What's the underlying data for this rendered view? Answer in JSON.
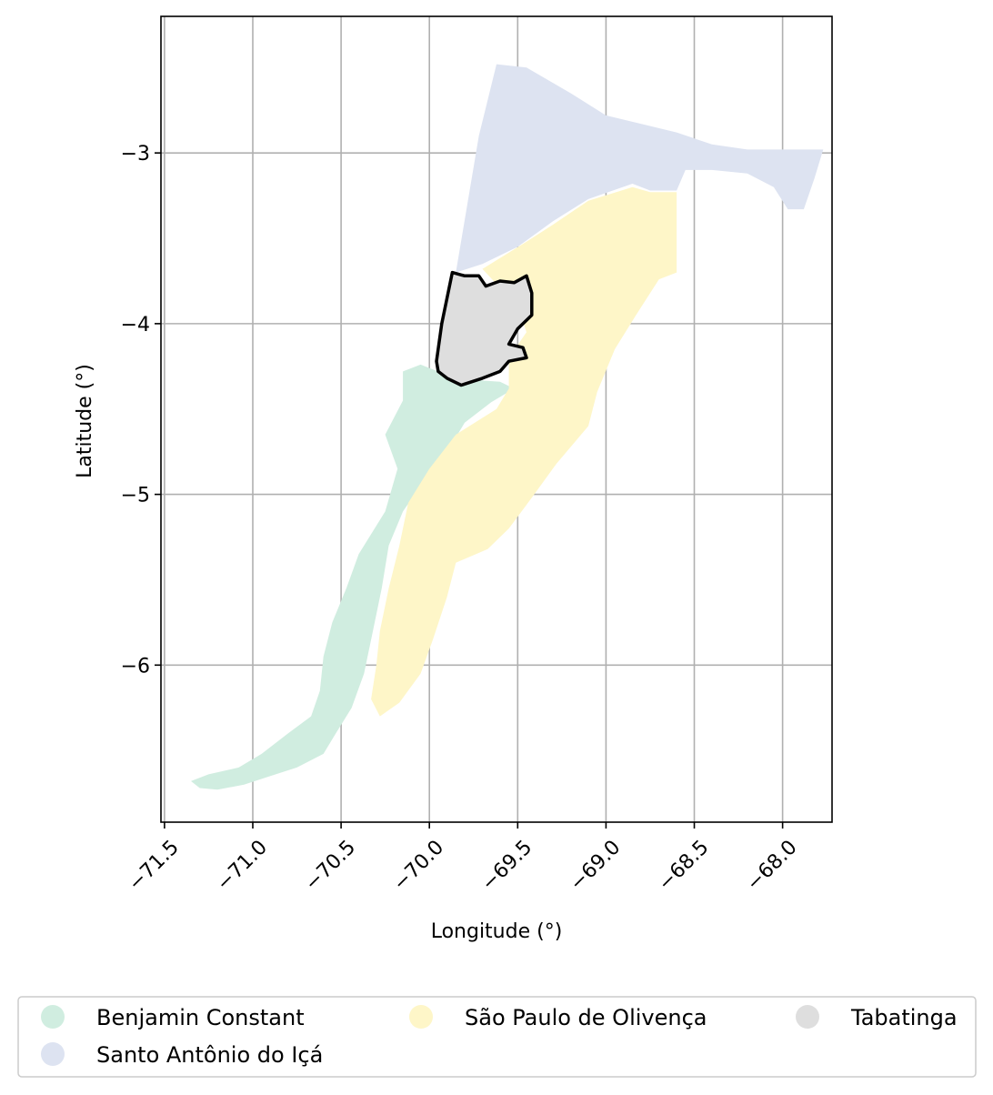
{
  "chart_data": {
    "type": "map",
    "xlabel": "Longitude (°)",
    "ylabel": "Latitude (°)",
    "xlim": [
      -71.52,
      -67.72
    ],
    "ylim": [
      -6.92,
      -2.2
    ],
    "x_ticks": [
      -71.5,
      -71.0,
      -70.5,
      -70.0,
      -69.5,
      -69.0,
      -68.5,
      -68.0
    ],
    "x_tick_labels": [
      "−71.5",
      "−71.0",
      "−70.5",
      "−70.0",
      "−69.5",
      "−69.0",
      "−68.5",
      "−68.0"
    ],
    "y_ticks": [
      -3,
      -4,
      -5,
      -6
    ],
    "y_tick_labels": [
      "−3",
      "−4",
      "−5",
      "−6"
    ],
    "grid": true,
    "legend_position": "bottom",
    "highlighted_region": "Tabatinga",
    "regions": [
      {
        "name": "Benjamin Constant",
        "color": "#d0ede0",
        "outline": false,
        "polygon": [
          [
            -70.15,
            -4.28
          ],
          [
            -70.05,
            -4.24
          ],
          [
            -69.9,
            -4.3
          ],
          [
            -69.75,
            -4.33
          ],
          [
            -69.6,
            -4.34
          ],
          [
            -69.52,
            -4.38
          ],
          [
            -69.65,
            -4.46
          ],
          [
            -69.8,
            -4.58
          ],
          [
            -69.9,
            -4.75
          ],
          [
            -70.05,
            -4.95
          ],
          [
            -70.15,
            -5.1
          ],
          [
            -70.23,
            -5.3
          ],
          [
            -70.27,
            -5.55
          ],
          [
            -70.32,
            -5.8
          ],
          [
            -70.37,
            -6.05
          ],
          [
            -70.44,
            -6.25
          ],
          [
            -70.53,
            -6.4
          ],
          [
            -70.6,
            -6.52
          ],
          [
            -70.75,
            -6.6
          ],
          [
            -70.9,
            -6.65
          ],
          [
            -71.05,
            -6.7
          ],
          [
            -71.2,
            -6.73
          ],
          [
            -71.3,
            -6.72
          ],
          [
            -71.35,
            -6.68
          ],
          [
            -71.25,
            -6.64
          ],
          [
            -71.08,
            -6.6
          ],
          [
            -70.95,
            -6.52
          ],
          [
            -70.8,
            -6.4
          ],
          [
            -70.67,
            -6.3
          ],
          [
            -70.62,
            -6.15
          ],
          [
            -70.6,
            -5.95
          ],
          [
            -70.55,
            -5.75
          ],
          [
            -70.47,
            -5.55
          ],
          [
            -70.4,
            -5.35
          ],
          [
            -70.25,
            -5.1
          ],
          [
            -70.18,
            -4.85
          ],
          [
            -70.25,
            -4.65
          ],
          [
            -70.15,
            -4.45
          ]
        ]
      },
      {
        "name": "Santo Antônio do Içá",
        "color": "#dde3f1",
        "outline": false,
        "polygon": [
          [
            -69.85,
            -3.7
          ],
          [
            -69.72,
            -2.9
          ],
          [
            -69.62,
            -2.48
          ],
          [
            -69.45,
            -2.5
          ],
          [
            -69.2,
            -2.65
          ],
          [
            -69.0,
            -2.78
          ],
          [
            -68.8,
            -2.83
          ],
          [
            -68.6,
            -2.88
          ],
          [
            -68.4,
            -2.95
          ],
          [
            -68.2,
            -2.98
          ],
          [
            -67.97,
            -2.98
          ],
          [
            -67.77,
            -2.98
          ],
          [
            -67.82,
            -3.15
          ],
          [
            -67.88,
            -3.33
          ],
          [
            -67.97,
            -3.33
          ],
          [
            -68.05,
            -3.2
          ],
          [
            -68.2,
            -3.12
          ],
          [
            -68.4,
            -3.1
          ],
          [
            -68.55,
            -3.1
          ],
          [
            -68.6,
            -3.22
          ],
          [
            -68.75,
            -3.22
          ],
          [
            -68.85,
            -3.18
          ],
          [
            -69.1,
            -3.27
          ],
          [
            -69.3,
            -3.4
          ],
          [
            -69.5,
            -3.55
          ],
          [
            -69.7,
            -3.65
          ]
        ]
      },
      {
        "name": "São Paulo de Olivença",
        "color": "#fef6c8",
        "outline": false,
        "polygon": [
          [
            -69.7,
            -3.68
          ],
          [
            -69.45,
            -3.52
          ],
          [
            -69.3,
            -3.42
          ],
          [
            -69.1,
            -3.28
          ],
          [
            -68.85,
            -3.2
          ],
          [
            -68.75,
            -3.23
          ],
          [
            -68.6,
            -3.23
          ],
          [
            -68.6,
            -3.7
          ],
          [
            -68.7,
            -3.74
          ],
          [
            -68.83,
            -3.95
          ],
          [
            -68.95,
            -4.15
          ],
          [
            -69.05,
            -4.4
          ],
          [
            -69.1,
            -4.6
          ],
          [
            -69.28,
            -4.82
          ],
          [
            -69.42,
            -5.02
          ],
          [
            -69.55,
            -5.2
          ],
          [
            -69.67,
            -5.32
          ],
          [
            -69.85,
            -5.4
          ],
          [
            -69.9,
            -5.6
          ],
          [
            -69.98,
            -5.85
          ],
          [
            -70.05,
            -6.05
          ],
          [
            -70.17,
            -6.22
          ],
          [
            -70.28,
            -6.3
          ],
          [
            -70.33,
            -6.2
          ],
          [
            -70.3,
            -6.0
          ],
          [
            -70.28,
            -5.8
          ],
          [
            -70.23,
            -5.55
          ],
          [
            -70.17,
            -5.3
          ],
          [
            -70.12,
            -5.05
          ],
          [
            -70.0,
            -4.85
          ],
          [
            -69.85,
            -4.65
          ],
          [
            -69.62,
            -4.5
          ],
          [
            -69.55,
            -4.38
          ],
          [
            -69.55,
            -4.2
          ],
          [
            -69.45,
            -4.05
          ],
          [
            -69.5,
            -3.9
          ]
        ]
      },
      {
        "name": "Tabatinga",
        "color": "#dedede",
        "outline": true,
        "polygon": [
          [
            -69.87,
            -3.7
          ],
          [
            -69.8,
            -3.72
          ],
          [
            -69.72,
            -3.72
          ],
          [
            -69.68,
            -3.78
          ],
          [
            -69.6,
            -3.75
          ],
          [
            -69.52,
            -3.76
          ],
          [
            -69.45,
            -3.72
          ],
          [
            -69.42,
            -3.82
          ],
          [
            -69.42,
            -3.95
          ],
          [
            -69.5,
            -4.03
          ],
          [
            -69.55,
            -4.12
          ],
          [
            -69.47,
            -4.14
          ],
          [
            -69.45,
            -4.2
          ],
          [
            -69.55,
            -4.22
          ],
          [
            -69.6,
            -4.28
          ],
          [
            -69.7,
            -4.32
          ],
          [
            -69.82,
            -4.36
          ],
          [
            -69.9,
            -4.32
          ],
          [
            -69.95,
            -4.28
          ],
          [
            -69.96,
            -4.22
          ],
          [
            -69.93,
            -4.0
          ]
        ]
      }
    ],
    "legend": [
      {
        "label": "Benjamin Constant",
        "color": "#d0ede0"
      },
      {
        "label": "São Paulo de Olivença",
        "color": "#fef6c8"
      },
      {
        "label": "Tabatinga",
        "color": "#dedede"
      },
      {
        "label": "Santo Antônio do Içá",
        "color": "#dde3f1"
      }
    ]
  }
}
